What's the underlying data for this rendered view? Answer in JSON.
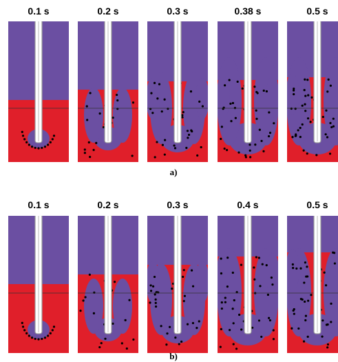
{
  "rows": [
    {
      "label": "a)",
      "panels": [
        {
          "time": "0.1 s"
        },
        {
          "time": "0.2 s"
        },
        {
          "time": "0.3 s"
        },
        {
          "time": "0.38 s"
        },
        {
          "time": "0.5 s"
        }
      ]
    },
    {
      "label": "b)",
      "panels": [
        {
          "time": "0.1 s"
        },
        {
          "time": "0.2 s"
        },
        {
          "time": "0.3 s"
        },
        {
          "time": "0.4 s"
        },
        {
          "time": "0.5 s"
        }
      ]
    }
  ]
}
